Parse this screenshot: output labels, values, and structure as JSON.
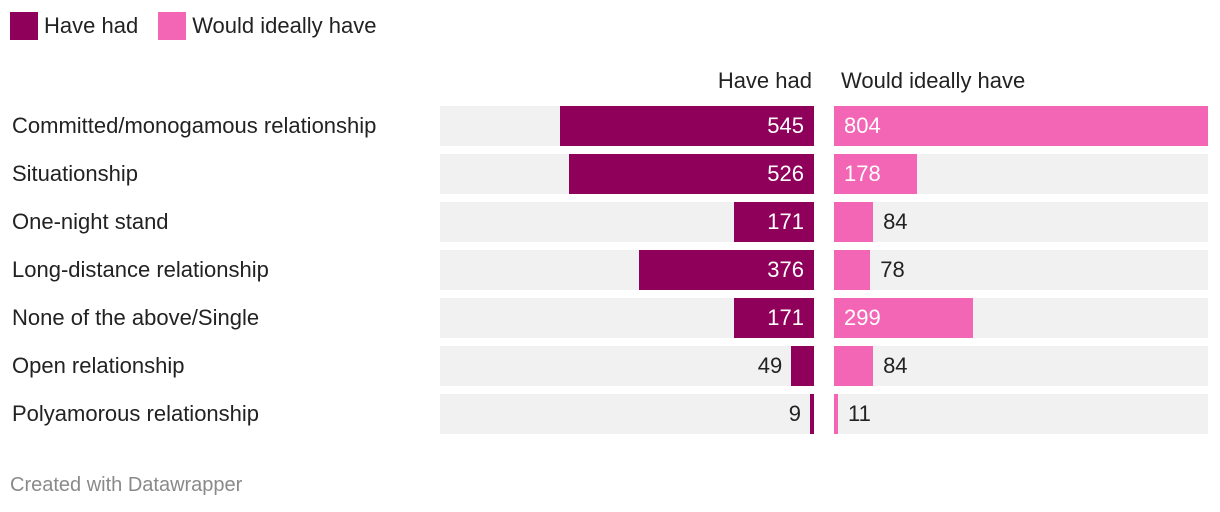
{
  "legend": [
    {
      "label": "Have had",
      "color": "#8e005a"
    },
    {
      "label": "Would ideally have",
      "color": "#f266b5"
    }
  ],
  "footer": "Created with Datawrapper",
  "chart_data": {
    "type": "bar",
    "orientation": "horizontal",
    "title": "",
    "categories": [
      "Committed/monogamous relationship",
      "Situationship",
      "One-night stand",
      "Long-distance relationship",
      "None of the above/Single",
      "Open relationship",
      "Polyamorous relationship"
    ],
    "series": [
      {
        "name": "Have had",
        "color": "#8e005a",
        "values": [
          545,
          526,
          171,
          376,
          171,
          49,
          9
        ]
      },
      {
        "name": "Would ideally have",
        "color": "#f266b5",
        "values": [
          804,
          178,
          84,
          78,
          299,
          84,
          11
        ]
      }
    ],
    "xlim": [
      0,
      804
    ]
  }
}
